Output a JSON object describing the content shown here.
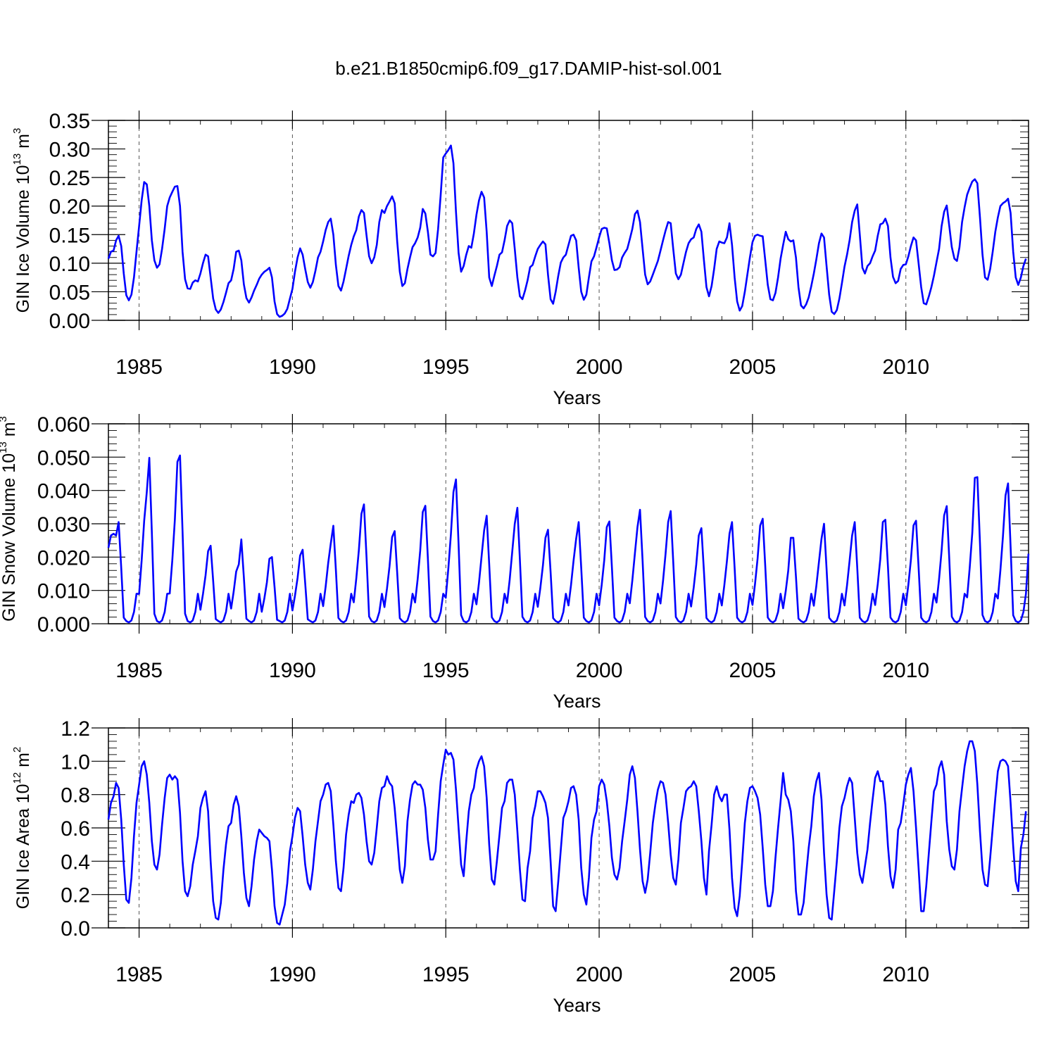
{
  "title": "b.e21.B1850cmip6.f09_g17.DAMIP-hist-sol.001",
  "colors": {
    "series": "#0000ff",
    "axes": "#000000",
    "grid": "#555555"
  },
  "chart_data": [
    {
      "type": "line",
      "name": "ice-volume",
      "ylabel": {
        "main": "GIN Ice Volume 10",
        "exp": "13",
        "unit": " m",
        "unit_exp": "3"
      },
      "xlabel": "Years",
      "xlim": [
        1984,
        2014
      ],
      "xticks": [
        1985,
        1990,
        1995,
        2000,
        2005,
        2010
      ],
      "ylim": [
        0,
        0.35
      ],
      "yticks": [
        0.0,
        0.05,
        0.1,
        0.15,
        0.2,
        0.25,
        0.3,
        0.35
      ],
      "ytick_labels": [
        "0.00",
        "0.05",
        "0.10",
        "0.15",
        "0.20",
        "0.25",
        "0.30",
        "0.35"
      ],
      "series": [
        {
          "name": "GIN Ice Volume",
          "x_start": 1984.0,
          "x_step": 0.08333,
          "values": [
            0.108,
            0.12,
            0.122,
            0.14,
            0.148,
            0.13,
            0.082,
            0.044,
            0.035,
            0.045,
            0.075,
            0.12,
            0.165,
            0.21,
            0.242,
            0.238,
            0.2,
            0.14,
            0.105,
            0.092,
            0.098,
            0.125,
            0.16,
            0.2,
            0.215,
            0.225,
            0.234,
            0.235,
            0.2,
            0.12,
            0.072,
            0.056,
            0.055,
            0.066,
            0.07,
            0.068,
            0.082,
            0.1,
            0.115,
            0.112,
            0.075,
            0.038,
            0.019,
            0.013,
            0.019,
            0.032,
            0.048,
            0.065,
            0.07,
            0.09,
            0.12,
            0.122,
            0.105,
            0.063,
            0.039,
            0.031,
            0.04,
            0.052,
            0.062,
            0.073,
            0.08,
            0.085,
            0.088,
            0.092,
            0.075,
            0.033,
            0.011,
            0.006,
            0.008,
            0.012,
            0.02,
            0.038,
            0.055,
            0.085,
            0.11,
            0.126,
            0.115,
            0.09,
            0.067,
            0.057,
            0.067,
            0.087,
            0.11,
            0.12,
            0.138,
            0.158,
            0.172,
            0.178,
            0.15,
            0.097,
            0.06,
            0.052,
            0.068,
            0.09,
            0.113,
            0.132,
            0.147,
            0.158,
            0.182,
            0.193,
            0.188,
            0.148,
            0.112,
            0.1,
            0.11,
            0.132,
            0.172,
            0.193,
            0.188,
            0.2,
            0.208,
            0.217,
            0.205,
            0.138,
            0.085,
            0.06,
            0.065,
            0.09,
            0.11,
            0.128,
            0.135,
            0.145,
            0.162,
            0.195,
            0.187,
            0.155,
            0.115,
            0.112,
            0.118,
            0.16,
            0.22,
            0.285,
            0.292,
            0.298,
            0.306,
            0.275,
            0.19,
            0.118,
            0.085,
            0.095,
            0.115,
            0.13,
            0.127,
            0.152,
            0.185,
            0.21,
            0.225,
            0.215,
            0.155,
            0.075,
            0.06,
            0.078,
            0.095,
            0.115,
            0.119,
            0.14,
            0.165,
            0.175,
            0.17,
            0.125,
            0.075,
            0.042,
            0.037,
            0.052,
            0.07,
            0.093,
            0.097,
            0.112,
            0.125,
            0.132,
            0.138,
            0.133,
            0.08,
            0.037,
            0.029,
            0.05,
            0.078,
            0.101,
            0.11,
            0.115,
            0.132,
            0.148,
            0.15,
            0.14,
            0.092,
            0.05,
            0.036,
            0.045,
            0.075,
            0.103,
            0.112,
            0.128,
            0.145,
            0.16,
            0.162,
            0.161,
            0.135,
            0.105,
            0.088,
            0.089,
            0.093,
            0.11,
            0.118,
            0.125,
            0.142,
            0.16,
            0.186,
            0.192,
            0.172,
            0.125,
            0.08,
            0.063,
            0.068,
            0.08,
            0.092,
            0.104,
            0.122,
            0.14,
            0.157,
            0.172,
            0.17,
            0.125,
            0.082,
            0.072,
            0.08,
            0.1,
            0.12,
            0.135,
            0.142,
            0.145,
            0.16,
            0.168,
            0.155,
            0.105,
            0.058,
            0.042,
            0.06,
            0.09,
            0.125,
            0.138,
            0.136,
            0.135,
            0.145,
            0.17,
            0.132,
            0.075,
            0.033,
            0.017,
            0.025,
            0.05,
            0.08,
            0.11,
            0.137,
            0.148,
            0.15,
            0.148,
            0.147,
            0.105,
            0.062,
            0.037,
            0.035,
            0.048,
            0.075,
            0.108,
            0.132,
            0.155,
            0.142,
            0.138,
            0.14,
            0.11,
            0.058,
            0.026,
            0.021,
            0.028,
            0.04,
            0.06,
            0.082,
            0.107,
            0.135,
            0.152,
            0.145,
            0.095,
            0.045,
            0.015,
            0.011,
            0.018,
            0.038,
            0.065,
            0.094,
            0.115,
            0.14,
            0.172,
            0.192,
            0.203,
            0.15,
            0.092,
            0.082,
            0.095,
            0.1,
            0.112,
            0.122,
            0.148,
            0.168,
            0.17,
            0.178,
            0.165,
            0.11,
            0.076,
            0.065,
            0.069,
            0.09,
            0.097,
            0.098,
            0.112,
            0.13,
            0.145,
            0.14,
            0.1,
            0.058,
            0.03,
            0.028,
            0.042,
            0.058,
            0.078,
            0.102,
            0.125,
            0.165,
            0.19,
            0.201,
            0.165,
            0.128,
            0.108,
            0.104,
            0.128,
            0.172,
            0.198,
            0.22,
            0.232,
            0.243,
            0.247,
            0.24,
            0.18,
            0.115,
            0.075,
            0.071,
            0.09,
            0.12,
            0.155,
            0.18,
            0.2,
            0.205,
            0.208,
            0.213,
            0.188,
            0.12,
            0.075,
            0.062,
            0.075,
            0.095,
            0.108
          ]
        }
      ]
    },
    {
      "type": "line",
      "name": "snow-volume",
      "ylabel": {
        "main": "GIN Snow Volume 10",
        "exp": "13",
        "unit": " m",
        "unit_exp": "3"
      },
      "xlabel": "Years",
      "xlim": [
        1984,
        2014
      ],
      "xticks": [
        1985,
        1990,
        1995,
        2000,
        2005,
        2010
      ],
      "ylim": [
        0,
        0.06
      ],
      "yticks": [
        0.0,
        0.01,
        0.02,
        0.03,
        0.04,
        0.05,
        0.06
      ],
      "ytick_labels": [
        "0.000",
        "0.010",
        "0.020",
        "0.030",
        "0.040",
        "0.050",
        "0.060"
      ],
      "series": [
        {
          "name": "GIN Snow Volume",
          "x_start": 1984.0,
          "x_step": 0.08333,
          "peaks": [
            {
              "year": 1984,
              "pre_peak": 0.0265,
              "peak": 0.0305
            },
            {
              "year": 1985,
              "pre_peak": 0.0395,
              "peak": 0.0498
            },
            {
              "year": 1986,
              "pre_peak": 0.0486,
              "peak": 0.0505
            },
            {
              "year": 1987,
              "pre_peak": 0.0218,
              "peak": 0.0234
            },
            {
              "year": 1988,
              "pre_peak": 0.0178,
              "peak": 0.0253
            },
            {
              "year": 1989,
              "pre_peak": 0.0195,
              "peak": 0.02
            },
            {
              "year": 1990,
              "pre_peak": 0.0205,
              "peak": 0.0222
            },
            {
              "year": 1991,
              "pre_peak": 0.024,
              "peak": 0.0294
            },
            {
              "year": 1992,
              "pre_peak": 0.033,
              "peak": 0.0358
            },
            {
              "year": 1993,
              "pre_peak": 0.026,
              "peak": 0.0278
            },
            {
              "year": 1994,
              "pre_peak": 0.0335,
              "peak": 0.0354
            },
            {
              "year": 1995,
              "pre_peak": 0.0395,
              "peak": 0.0433
            },
            {
              "year": 1996,
              "pre_peak": 0.028,
              "peak": 0.0324
            },
            {
              "year": 1997,
              "pre_peak": 0.03,
              "peak": 0.0348
            },
            {
              "year": 1998,
              "pre_peak": 0.0258,
              "peak": 0.0282
            },
            {
              "year": 1999,
              "pre_peak": 0.0255,
              "peak": 0.0305
            },
            {
              "year": 2000,
              "pre_peak": 0.029,
              "peak": 0.0307
            },
            {
              "year": 2001,
              "pre_peak": 0.029,
              "peak": 0.0342
            },
            {
              "year": 2002,
              "pre_peak": 0.0305,
              "peak": 0.0338
            },
            {
              "year": 2003,
              "pre_peak": 0.0265,
              "peak": 0.0287
            },
            {
              "year": 2004,
              "pre_peak": 0.027,
              "peak": 0.0305
            },
            {
              "year": 2005,
              "pre_peak": 0.0295,
              "peak": 0.0315
            },
            {
              "year": 2006,
              "pre_peak": 0.0258,
              "peak": 0.0258
            },
            {
              "year": 2007,
              "pre_peak": 0.0255,
              "peak": 0.03
            },
            {
              "year": 2008,
              "pre_peak": 0.0265,
              "peak": 0.0305
            },
            {
              "year": 2009,
              "pre_peak": 0.0305,
              "peak": 0.0312
            },
            {
              "year": 2010,
              "pre_peak": 0.0295,
              "peak": 0.0309
            },
            {
              "year": 2011,
              "pre_peak": 0.0325,
              "peak": 0.0353
            },
            {
              "year": 2012,
              "pre_peak": 0.0438,
              "peak": 0.044
            },
            {
              "year": 2013,
              "pre_peak": 0.0385,
              "peak": 0.0421
            }
          ],
          "end_value": 0.021
        }
      ]
    },
    {
      "type": "line",
      "name": "ice-area",
      "ylabel": {
        "main": "GIN Ice Area 10",
        "exp": "12",
        "unit": " m",
        "unit_exp": "2"
      },
      "xlabel": "Years",
      "xlim": [
        1984,
        2014
      ],
      "xticks": [
        1985,
        1990,
        1995,
        2000,
        2005,
        2010
      ],
      "ylim": [
        0,
        1.2
      ],
      "yticks": [
        0.0,
        0.2,
        0.4,
        0.6,
        0.8,
        1.0,
        1.2
      ],
      "ytick_labels": [
        "0.0",
        "0.2",
        "0.4",
        "0.6",
        "0.8",
        "1.0",
        "1.2"
      ],
      "series": [
        {
          "name": "GIN Ice Area",
          "x_start": 1984.0,
          "x_step": 0.08333,
          "values": [
            0.65,
            0.75,
            0.79,
            0.87,
            0.84,
            0.65,
            0.38,
            0.17,
            0.15,
            0.3,
            0.55,
            0.75,
            0.86,
            0.97,
            1.0,
            0.92,
            0.75,
            0.52,
            0.38,
            0.35,
            0.44,
            0.62,
            0.78,
            0.9,
            0.92,
            0.89,
            0.91,
            0.89,
            0.69,
            0.4,
            0.22,
            0.19,
            0.25,
            0.38,
            0.46,
            0.55,
            0.72,
            0.78,
            0.82,
            0.7,
            0.4,
            0.16,
            0.06,
            0.05,
            0.15,
            0.35,
            0.5,
            0.61,
            0.63,
            0.74,
            0.79,
            0.73,
            0.55,
            0.33,
            0.18,
            0.13,
            0.25,
            0.41,
            0.52,
            0.59,
            0.57,
            0.55,
            0.54,
            0.52,
            0.35,
            0.13,
            0.03,
            0.02,
            0.08,
            0.14,
            0.27,
            0.46,
            0.55,
            0.66,
            0.72,
            0.7,
            0.55,
            0.38,
            0.27,
            0.23,
            0.35,
            0.52,
            0.64,
            0.76,
            0.8,
            0.86,
            0.87,
            0.82,
            0.62,
            0.4,
            0.24,
            0.22,
            0.36,
            0.56,
            0.68,
            0.76,
            0.75,
            0.8,
            0.81,
            0.78,
            0.68,
            0.52,
            0.4,
            0.38,
            0.45,
            0.6,
            0.76,
            0.84,
            0.85,
            0.91,
            0.87,
            0.85,
            0.72,
            0.54,
            0.35,
            0.27,
            0.37,
            0.64,
            0.77,
            0.86,
            0.88,
            0.86,
            0.86,
            0.83,
            0.72,
            0.53,
            0.41,
            0.41,
            0.46,
            0.68,
            0.88,
            0.98,
            1.07,
            1.04,
            1.05,
            1.01,
            0.83,
            0.6,
            0.38,
            0.31,
            0.52,
            0.7,
            0.8,
            0.84,
            0.95,
            1.0,
            1.03,
            0.97,
            0.78,
            0.5,
            0.29,
            0.26,
            0.4,
            0.56,
            0.72,
            0.76,
            0.87,
            0.89,
            0.89,
            0.8,
            0.58,
            0.35,
            0.17,
            0.16,
            0.36,
            0.46,
            0.66,
            0.73,
            0.82,
            0.82,
            0.79,
            0.75,
            0.66,
            0.4,
            0.13,
            0.1,
            0.28,
            0.47,
            0.66,
            0.7,
            0.76,
            0.84,
            0.85,
            0.8,
            0.65,
            0.36,
            0.2,
            0.14,
            0.3,
            0.54,
            0.65,
            0.7,
            0.85,
            0.89,
            0.86,
            0.76,
            0.61,
            0.42,
            0.32,
            0.29,
            0.36,
            0.52,
            0.64,
            0.77,
            0.92,
            0.97,
            0.9,
            0.7,
            0.47,
            0.28,
            0.21,
            0.29,
            0.45,
            0.63,
            0.74,
            0.83,
            0.88,
            0.87,
            0.8,
            0.63,
            0.44,
            0.3,
            0.26,
            0.41,
            0.63,
            0.72,
            0.82,
            0.84,
            0.85,
            0.88,
            0.85,
            0.7,
            0.52,
            0.3,
            0.2,
            0.46,
            0.62,
            0.8,
            0.85,
            0.79,
            0.76,
            0.8,
            0.8,
            0.59,
            0.3,
            0.12,
            0.07,
            0.19,
            0.4,
            0.63,
            0.76,
            0.84,
            0.85,
            0.82,
            0.78,
            0.68,
            0.48,
            0.26,
            0.13,
            0.13,
            0.22,
            0.42,
            0.6,
            0.76,
            0.93,
            0.8,
            0.77,
            0.7,
            0.52,
            0.22,
            0.08,
            0.08,
            0.15,
            0.32,
            0.48,
            0.61,
            0.79,
            0.88,
            0.93,
            0.77,
            0.45,
            0.2,
            0.06,
            0.05,
            0.22,
            0.4,
            0.6,
            0.73,
            0.78,
            0.85,
            0.9,
            0.87,
            0.66,
            0.45,
            0.32,
            0.27,
            0.37,
            0.47,
            0.63,
            0.77,
            0.9,
            0.94,
            0.88,
            0.88,
            0.74,
            0.49,
            0.31,
            0.24,
            0.35,
            0.59,
            0.63,
            0.74,
            0.86,
            0.92,
            0.96,
            0.82,
            0.6,
            0.36,
            0.1,
            0.1,
            0.25,
            0.45,
            0.64,
            0.82,
            0.86,
            0.96,
            1.0,
            0.92,
            0.64,
            0.47,
            0.37,
            0.35,
            0.47,
            0.7,
            0.84,
            0.97,
            1.06,
            1.12,
            1.12,
            1.06,
            0.86,
            0.58,
            0.35,
            0.26,
            0.25,
            0.42,
            0.6,
            0.78,
            0.94,
            1.0,
            1.01,
            1.0,
            0.97,
            0.75,
            0.49,
            0.28,
            0.22,
            0.48,
            0.56,
            0.7
          ]
        }
      ]
    }
  ]
}
